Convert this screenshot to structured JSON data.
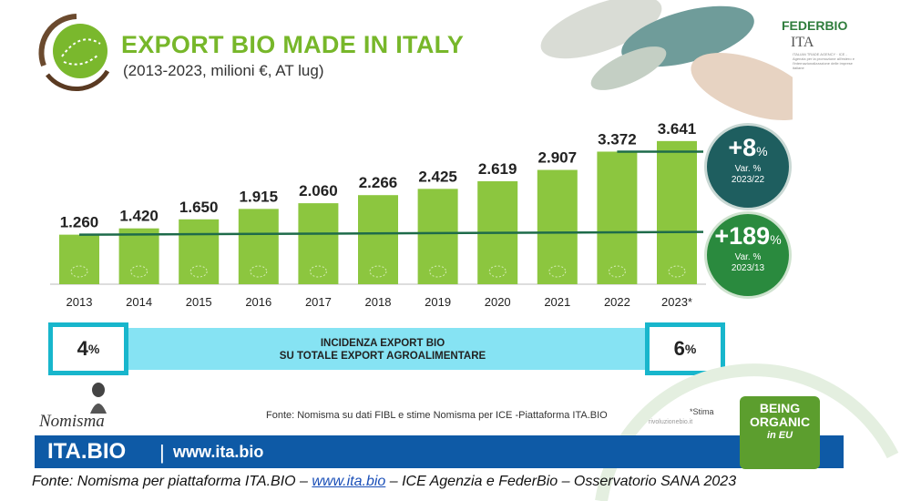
{
  "header": {
    "title": "EXPORT BIO MADE IN ITALY",
    "subtitle": "(2013-2023, milioni €, AT lug)"
  },
  "logos": {
    "federbio": "FEDERBIO",
    "ita": "ITA",
    "ita_fine": "ITALIAN TRADE AGENCY · ICE - Agenzia per la promozione all'estero e l'internazionalizzazione delle imprese italiane",
    "nomisma": "Nomisma",
    "being_organic": [
      "BEING",
      "ORGANIC",
      "in EU"
    ]
  },
  "chart_data": {
    "type": "bar",
    "title": "EXPORT BIO MADE IN ITALY",
    "subtitle": "(2013-2023, milioni €, AT lug)",
    "categories": [
      "2013",
      "2014",
      "2015",
      "2016",
      "2017",
      "2018",
      "2019",
      "2020",
      "2021",
      "2022",
      "2023*"
    ],
    "values": [
      1260,
      1420,
      1650,
      1915,
      2060,
      2266,
      2425,
      2619,
      2907,
      3372,
      3641
    ],
    "value_labels": [
      "1.260",
      "1.420",
      "1.650",
      "1.915",
      "2.060",
      "2.266",
      "2.425",
      "2.619",
      "2.907",
      "3.372",
      "3.641"
    ],
    "bar_color": "#8cc63f",
    "line_color": "#1e6b4a",
    "ylim": [
      0,
      3800
    ],
    "grid": false
  },
  "callouts": {
    "var_2023_22": {
      "value": "+8",
      "unit": "%",
      "label": "Var. %",
      "period": "2023/22"
    },
    "var_2023_13": {
      "value": "+189",
      "unit": "%",
      "label": "Var. %",
      "period": "2023/13"
    }
  },
  "incidence": {
    "line1": "INCIDENZA EXPORT BIO",
    "line2": "SU TOTALE EXPORT AGROALIMENTARE",
    "start_value": "4",
    "end_value": "6",
    "unit": "%"
  },
  "source": {
    "inner": "Fonte: Nomisma su dati FIBL e stime Nomisma per ICE   -Piattaforma ITA.BIO",
    "stima": "*Stima",
    "rivoluzione": "rivoluzionebio.it"
  },
  "bar": {
    "brand": "ITA.BIO",
    "separator": "|",
    "url": "www.ita.bio"
  },
  "footnote": {
    "before": "Fonte: Nomisma per piattaforma ITA.BIO – ",
    "link": "www.ita.bio",
    "after": " – ICE Agenzia e FederBio – Osservatorio SANA 2023"
  },
  "colors": {
    "title_green": "#77b72a",
    "band_cyan": "#86e3f3",
    "box_border": "#18b6cc",
    "brand_blue": "#0e5aa6",
    "circle_dark": "#1e5e5f",
    "circle_green": "#2a8a3e"
  }
}
